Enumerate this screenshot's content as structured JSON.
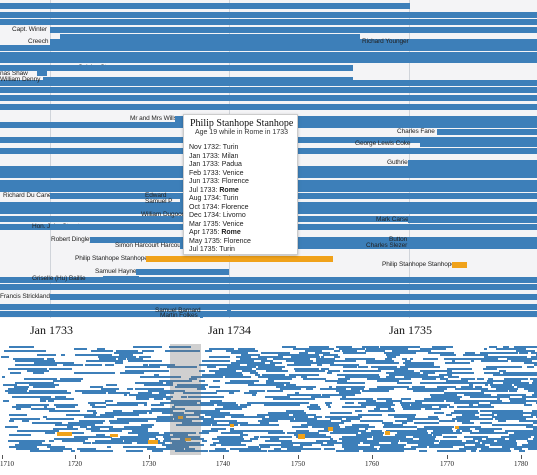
{
  "main": {
    "rows": [
      {
        "label": "Capt. Winter",
        "side": "left"
      },
      {
        "label": "Creech",
        "side": "left"
      },
      {
        "label": "Richard Younger",
        "side": "right"
      },
      {
        "label": "nas Shaw",
        "side": "left"
      },
      {
        "label": "Celsius Stevens",
        "side": "left"
      },
      {
        "label": "William Denny",
        "side": "left"
      },
      {
        "label": "Mr and Mrs Wills",
        "side": "left"
      },
      {
        "label": "Charles Fane",
        "side": "right"
      },
      {
        "label": "George Lewis Coke",
        "side": "right"
      },
      {
        "label": "Guthrie",
        "side": "right"
      },
      {
        "label": "Richard Du Cane",
        "side": "left"
      },
      {
        "label": "Edward",
        "side": "left"
      },
      {
        "label": "Samuel P",
        "side": "left"
      },
      {
        "label": "William Dugood",
        "side": "left"
      },
      {
        "label": "Mark Carse",
        "side": "right"
      },
      {
        "label": "Hon. John Stuart",
        "side": "left"
      },
      {
        "label": "Robert Dingley",
        "side": "left"
      },
      {
        "label": "Button",
        "side": "right"
      },
      {
        "label": "Simon Harcourt Harcourt",
        "side": "left"
      },
      {
        "label": "Charles Slezer",
        "side": "right"
      },
      {
        "label": "Philip Stanhope Stanhope",
        "side": "left",
        "highlight": true
      },
      {
        "label": "Philip Stanhope Stanhope",
        "side": "right",
        "highlight": true
      },
      {
        "label": "Samuel Haynes",
        "side": "left"
      },
      {
        "label": "Griselle (Hu) Baillie",
        "side": "left"
      },
      {
        "label": "Francis Strickland",
        "side": "left"
      },
      {
        "label": "Samuel Barnard",
        "side": "left"
      },
      {
        "label": "Martin Folkes",
        "side": "left"
      }
    ]
  },
  "tooltip": {
    "name": "Philip Stanhope Stanhope",
    "subtitle": "Age 19 while in Rome in 1733",
    "entries": [
      {
        "date": "Nov 1732:",
        "place": "Turin",
        "bold": false
      },
      {
        "date": "Jan 1733:",
        "place": "Milan",
        "bold": false
      },
      {
        "date": "Jan 1733:",
        "place": "Padua",
        "bold": false
      },
      {
        "date": "Feb 1733:",
        "place": "Venice",
        "bold": false
      },
      {
        "date": "Jun 1733:",
        "place": "Florence",
        "bold": false
      },
      {
        "date": "Jul 1733:",
        "place": "Rome",
        "bold": true
      },
      {
        "date": "Aug 1734:",
        "place": "Turin",
        "bold": false
      },
      {
        "date": "Oct 1734:",
        "place": "Florence",
        "bold": false
      },
      {
        "date": "Dec 1734:",
        "place": "Livorno",
        "bold": false
      },
      {
        "date": "Mar 1735:",
        "place": "Venice",
        "bold": false
      },
      {
        "date": "Apr 1735:",
        "place": "Rome",
        "bold": true
      },
      {
        "date": "May 1735:",
        "place": "Florence",
        "bold": false
      },
      {
        "date": "Jul 1735:",
        "place": "Turin",
        "bold": false
      }
    ]
  },
  "main_axis": {
    "ticks": [
      "Jan 1733",
      "Jan 1734",
      "Jan 1735"
    ]
  },
  "overview_axis": {
    "ticks": [
      "1710",
      "1720",
      "1730",
      "1740",
      "1750",
      "1760",
      "1770",
      "1780"
    ]
  },
  "colors": {
    "bar": "#3d7fb9",
    "highlight": "#f0a21a",
    "brush": "#888888"
  }
}
